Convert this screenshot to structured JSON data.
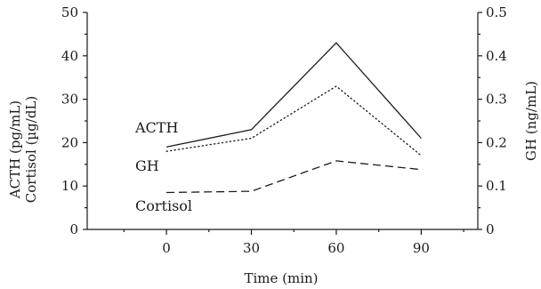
{
  "chart_data": {
    "type": "line",
    "xlabel": "Time (min)",
    "ylabel_left_line1": "ACTH (pg/mL)",
    "ylabel_left_line2": "Cortisol (µg/dL)",
    "ylabel_right": "GH (ng/mL)",
    "x": [
      0,
      30,
      60,
      90
    ],
    "x_ticks": [
      "0",
      "30",
      "60",
      "90"
    ],
    "xlim": [
      -28,
      110
    ],
    "ylim_left": [
      0,
      50
    ],
    "ylim_right": [
      0,
      0.5
    ],
    "y_ticks_left": [
      "0",
      "10",
      "20",
      "30",
      "40",
      "50"
    ],
    "y_ticks_right": [
      "0",
      "0.1",
      "0.2",
      "0.3",
      "0.4",
      "0.5"
    ],
    "grid": false,
    "series": [
      {
        "name": "ACTH",
        "axis": "left",
        "style": "solid",
        "values": [
          19,
          23,
          43,
          21
        ]
      },
      {
        "name": "GH",
        "axis": "right",
        "style": "dotted",
        "values": [
          0.18,
          0.21,
          0.33,
          0.17
        ]
      },
      {
        "name": "Cortisol",
        "axis": "left",
        "style": "dashed",
        "values": [
          8.5,
          8.8,
          15.8,
          13.8
        ]
      }
    ]
  }
}
